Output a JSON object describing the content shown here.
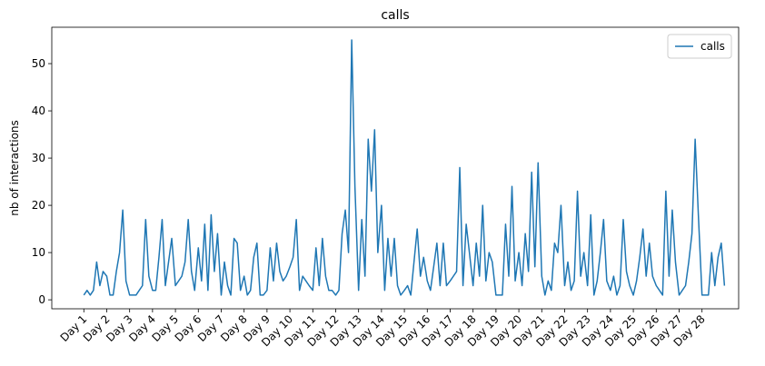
{
  "chart_data": {
    "type": "line",
    "title": "calls",
    "y_label": "nb of interactions",
    "x": [
      1,
      1.14,
      1.28,
      1.42,
      1.56,
      1.7,
      1.84,
      2,
      2.14,
      2.28,
      2.42,
      2.56,
      2.7,
      2.84,
      3,
      3.14,
      3.28,
      3.42,
      3.56,
      3.7,
      3.84,
      4,
      4.14,
      4.28,
      4.42,
      4.56,
      4.7,
      4.84,
      5,
      5.14,
      5.28,
      5.42,
      5.56,
      5.7,
      5.84,
      6,
      6.14,
      6.28,
      6.42,
      6.56,
      6.7,
      6.84,
      7,
      7.14,
      7.28,
      7.42,
      7.56,
      7.7,
      7.84,
      8,
      8.14,
      8.28,
      8.42,
      8.56,
      8.7,
      8.84,
      9,
      9.14,
      9.28,
      9.42,
      9.56,
      9.7,
      9.84,
      10,
      10.14,
      10.28,
      10.42,
      10.56,
      10.7,
      10.84,
      11,
      11.14,
      11.28,
      11.42,
      11.56,
      11.7,
      11.84,
      12,
      12.14,
      12.28,
      12.42,
      12.56,
      12.7,
      12.84,
      13,
      13.14,
      13.28,
      13.42,
      13.56,
      13.7,
      13.84,
      14,
      14.14,
      14.28,
      14.42,
      14.56,
      14.7,
      14.84,
      15,
      15.14,
      15.28,
      15.42,
      15.56,
      15.7,
      15.84,
      16,
      16.14,
      16.28,
      16.42,
      16.56,
      16.7,
      16.84,
      17,
      17.14,
      17.28,
      17.42,
      17.56,
      17.7,
      17.84,
      18,
      18.14,
      18.28,
      18.42,
      18.56,
      18.7,
      18.84,
      19,
      19.14,
      19.28,
      19.42,
      19.56,
      19.7,
      19.84,
      20,
      20.14,
      20.28,
      20.42,
      20.56,
      20.7,
      20.84,
      21,
      21.14,
      21.28,
      21.42,
      21.56,
      21.7,
      21.84,
      22,
      22.14,
      22.28,
      22.42,
      22.56,
      22.7,
      22.84,
      23,
      23.14,
      23.28,
      23.42,
      23.56,
      23.7,
      23.84,
      24,
      24.14,
      24.28,
      24.42,
      24.56,
      24.7,
      24.84,
      25,
      25.14,
      25.28,
      25.42,
      25.56,
      25.7,
      25.84,
      26,
      26.14,
      26.28,
      26.42,
      26.56,
      26.7,
      26.84,
      27,
      27.14,
      27.28,
      27.42,
      27.56,
      27.7,
      27.84,
      28,
      28.14,
      28.28,
      28.42,
      28.56,
      28.7,
      28.84,
      28.98
    ],
    "series": [
      {
        "name": "calls",
        "color": "#1f77b4",
        "values": [
          1,
          2,
          1,
          2,
          8,
          3,
          6,
          5,
          1,
          1,
          6,
          10,
          19,
          4,
          1,
          1,
          1,
          2,
          3,
          17,
          5,
          2,
          2,
          9,
          17,
          3,
          8,
          13,
          3,
          4,
          5,
          8,
          17,
          6,
          2,
          11,
          4,
          16,
          2,
          18,
          6,
          14,
          1,
          8,
          3,
          1,
          13,
          12,
          2,
          5,
          1,
          2,
          9,
          12,
          1,
          1,
          2,
          11,
          4,
          12,
          6,
          4,
          5,
          7,
          9,
          17,
          2,
          5,
          4,
          3,
          2,
          11,
          3,
          13,
          5,
          2,
          2,
          1,
          2,
          14,
          19,
          10,
          55,
          24,
          2,
          17,
          5,
          34,
          23,
          36,
          10,
          20,
          2,
          13,
          5,
          13,
          3,
          1,
          2,
          3,
          1,
          8,
          15,
          5,
          9,
          4,
          2,
          7,
          12,
          3,
          12,
          3,
          4,
          5,
          6,
          28,
          3,
          16,
          10,
          3,
          12,
          5,
          20,
          4,
          10,
          8,
          1,
          1,
          1,
          16,
          5,
          24,
          4,
          10,
          3,
          14,
          6,
          27,
          7,
          29,
          5,
          1,
          4,
          2,
          12,
          10,
          20,
          3,
          8,
          2,
          4,
          23,
          5,
          10,
          3,
          18,
          1,
          4,
          10,
          17,
          4,
          2,
          5,
          1,
          3,
          17,
          6,
          3,
          1,
          4,
          9,
          15,
          5,
          12,
          5,
          3,
          2,
          1,
          23,
          5,
          19,
          8,
          1,
          2,
          3,
          8,
          14,
          34,
          18,
          1,
          1,
          1,
          10,
          3,
          9,
          12,
          3
        ]
      }
    ],
    "xlim": [
      -0.4,
      29.6
    ],
    "ylim": [
      -1.9,
      57.7
    ],
    "xticks": [
      {
        "value": 1,
        "label": "Day 1"
      },
      {
        "value": 2,
        "label": "Day 2"
      },
      {
        "value": 3,
        "label": "Day 3"
      },
      {
        "value": 4,
        "label": "Day 4"
      },
      {
        "value": 5,
        "label": "Day 5"
      },
      {
        "value": 6,
        "label": "Day 6"
      },
      {
        "value": 7,
        "label": "Day 7"
      },
      {
        "value": 8,
        "label": "Day 8"
      },
      {
        "value": 9,
        "label": "Day 9"
      },
      {
        "value": 10,
        "label": "Day 10"
      },
      {
        "value": 11,
        "label": "Day 11"
      },
      {
        "value": 12,
        "label": "Day 12"
      },
      {
        "value": 13,
        "label": "Day 13"
      },
      {
        "value": 14,
        "label": "Day 14"
      },
      {
        "value": 15,
        "label": "Day 15"
      },
      {
        "value": 16,
        "label": "Day 16"
      },
      {
        "value": 17,
        "label": "Day 17"
      },
      {
        "value": 18,
        "label": "Day 18"
      },
      {
        "value": 19,
        "label": "Day 19"
      },
      {
        "value": 20,
        "label": "Day 20"
      },
      {
        "value": 21,
        "label": "Day 21"
      },
      {
        "value": 22,
        "label": "Day 22"
      },
      {
        "value": 23,
        "label": "Day 23"
      },
      {
        "value": 24,
        "label": "Day 24"
      },
      {
        "value": 25,
        "label": "Day 25"
      },
      {
        "value": 26,
        "label": "Day 26"
      },
      {
        "value": 27,
        "label": "Day 27"
      },
      {
        "value": 28,
        "label": "Day 28"
      }
    ],
    "yticks": [
      0,
      10,
      20,
      30,
      40,
      50
    ],
    "legend": "upper right",
    "grid": false
  }
}
